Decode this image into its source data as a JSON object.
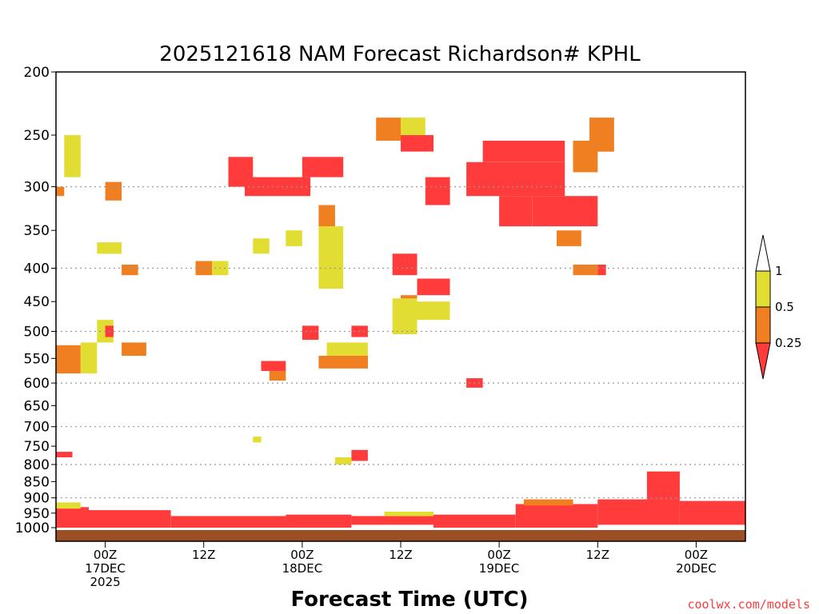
{
  "chart_data": {
    "type": "heatmap",
    "title": "2025121618 NAM Forecast Richardson# KPHL",
    "xlabel": "Forecast Time (UTC)",
    "ylabel": "",
    "y_axis": "pressure (hPa), log scale, inverted",
    "ylim": [
      1000,
      200
    ],
    "y_ticks": [
      200,
      250,
      300,
      350,
      400,
      450,
      500,
      550,
      600,
      650,
      700,
      750,
      800,
      850,
      900,
      950,
      1000
    ],
    "y_gridlines": [
      300,
      400,
      500,
      600,
      700,
      800,
      900
    ],
    "x_axis": "forecast hour from 2025-12-16 18Z",
    "xlim": [
      0,
      84
    ],
    "x_ticks": [
      {
        "hour": 6,
        "lines": [
          "00Z",
          "17DEC",
          "2025"
        ]
      },
      {
        "hour": 18,
        "lines": [
          "12Z"
        ]
      },
      {
        "hour": 30,
        "lines": [
          "00Z",
          "18DEC"
        ]
      },
      {
        "hour": 42,
        "lines": [
          "12Z"
        ]
      },
      {
        "hour": 54,
        "lines": [
          "00Z",
          "19DEC"
        ]
      },
      {
        "hour": 66,
        "lines": [
          "12Z"
        ]
      },
      {
        "hour": 78,
        "lines": [
          "00Z",
          "20DEC"
        ]
      }
    ],
    "colorbar": {
      "levels": [
        "1",
        "0.5",
        "0.25"
      ],
      "bins": [
        {
          "range": "0.5-1",
          "color": "#e2dd33"
        },
        {
          "range": "0.25-0.5",
          "color": "#f07f22"
        },
        {
          "range": "<0.25",
          "color": "#ff3b3b"
        }
      ],
      "above_max_color": "#ffffff"
    },
    "ground_color": "#9c4f25",
    "regions": [
      {
        "t0": 0,
        "t1": 4,
        "p0": 930,
        "p1": 1000,
        "cat": "red"
      },
      {
        "t0": 4,
        "t1": 14,
        "p0": 940,
        "p1": 1000,
        "cat": "red"
      },
      {
        "t0": 14,
        "t1": 28,
        "p0": 960,
        "p1": 1000,
        "cat": "red"
      },
      {
        "t0": 28,
        "t1": 36,
        "p0": 955,
        "p1": 1000,
        "cat": "red"
      },
      {
        "t0": 36,
        "t1": 46,
        "p0": 960,
        "p1": 990,
        "cat": "red"
      },
      {
        "t0": 46,
        "t1": 56,
        "p0": 955,
        "p1": 1000,
        "cat": "red"
      },
      {
        "t0": 56,
        "t1": 66,
        "p0": 920,
        "p1": 1000,
        "cat": "red"
      },
      {
        "t0": 66,
        "t1": 76,
        "p0": 905,
        "p1": 990,
        "cat": "red"
      },
      {
        "t0": 76,
        "t1": 84,
        "p0": 910,
        "p1": 990,
        "cat": "red"
      },
      {
        "t0": 72,
        "t1": 76,
        "p0": 820,
        "p1": 905,
        "cat": "red"
      },
      {
        "t0": 0,
        "t1": 3,
        "p0": 915,
        "p1": 935,
        "cat": "yellow"
      },
      {
        "t0": 40,
        "t1": 46,
        "p0": 945,
        "p1": 960,
        "cat": "yellow"
      },
      {
        "t0": 57,
        "t1": 63,
        "p0": 905,
        "p1": 925,
        "cat": "orange"
      },
      {
        "t0": 50,
        "t1": 62,
        "p0": 275,
        "p1": 310,
        "cat": "red"
      },
      {
        "t0": 52,
        "t1": 62,
        "p0": 255,
        "p1": 275,
        "cat": "red"
      },
      {
        "t0": 54,
        "t1": 58,
        "p0": 310,
        "p1": 345,
        "cat": "red"
      },
      {
        "t0": 58,
        "t1": 66,
        "p0": 310,
        "p1": 345,
        "cat": "red"
      },
      {
        "t0": 63,
        "t1": 66,
        "p0": 255,
        "p1": 285,
        "cat": "orange"
      },
      {
        "t0": 65,
        "t1": 68,
        "p0": 235,
        "p1": 265,
        "cat": "orange"
      },
      {
        "t0": 23,
        "t1": 31,
        "p0": 290,
        "p1": 310,
        "cat": "red"
      },
      {
        "t0": 21,
        "t1": 24,
        "p0": 270,
        "p1": 300,
        "cat": "red"
      },
      {
        "t0": 30,
        "t1": 35,
        "p0": 270,
        "p1": 290,
        "cat": "red"
      },
      {
        "t0": 42,
        "t1": 46,
        "p0": 250,
        "p1": 265,
        "cat": "red"
      },
      {
        "t0": 45,
        "t1": 48,
        "p0": 290,
        "p1": 320,
        "cat": "red"
      },
      {
        "t0": 39,
        "t1": 42,
        "p0": 235,
        "p1": 255,
        "cat": "orange"
      },
      {
        "t0": 42,
        "t1": 45,
        "p0": 235,
        "p1": 250,
        "cat": "yellow"
      },
      {
        "t0": 0,
        "t1": 1,
        "p0": 300,
        "p1": 310,
        "cat": "orange"
      },
      {
        "t0": 1,
        "t1": 3,
        "p0": 250,
        "p1": 290,
        "cat": "yellow"
      },
      {
        "t0": 6,
        "t1": 8,
        "p0": 295,
        "p1": 315,
        "cat": "orange"
      },
      {
        "t0": 5,
        "t1": 8,
        "p0": 365,
        "p1": 380,
        "cat": "yellow"
      },
      {
        "t0": 8,
        "t1": 10,
        "p0": 395,
        "p1": 410,
        "cat": "orange"
      },
      {
        "t0": 17,
        "t1": 19,
        "p0": 390,
        "p1": 410,
        "cat": "orange"
      },
      {
        "t0": 19,
        "t1": 21,
        "p0": 390,
        "p1": 410,
        "cat": "yellow"
      },
      {
        "t0": 24,
        "t1": 26,
        "p0": 360,
        "p1": 380,
        "cat": "yellow"
      },
      {
        "t0": 28,
        "t1": 30,
        "p0": 350,
        "p1": 370,
        "cat": "yellow"
      },
      {
        "t0": 32,
        "t1": 35,
        "p0": 345,
        "p1": 430,
        "cat": "yellow"
      },
      {
        "t0": 32,
        "t1": 34,
        "p0": 320,
        "p1": 345,
        "cat": "orange"
      },
      {
        "t0": 41,
        "t1": 44,
        "p0": 380,
        "p1": 410,
        "cat": "red"
      },
      {
        "t0": 44,
        "t1": 48,
        "p0": 415,
        "p1": 440,
        "cat": "red"
      },
      {
        "t0": 42,
        "t1": 44,
        "p0": 440,
        "p1": 490,
        "cat": "orange"
      },
      {
        "t0": 44,
        "t1": 48,
        "p0": 450,
        "p1": 480,
        "cat": "yellow"
      },
      {
        "t0": 41,
        "t1": 44,
        "p0": 445,
        "p1": 505,
        "cat": "yellow"
      },
      {
        "t0": 61,
        "t1": 64,
        "p0": 350,
        "p1": 370,
        "cat": "orange"
      },
      {
        "t0": 63,
        "t1": 66,
        "p0": 395,
        "p1": 410,
        "cat": "orange"
      },
      {
        "t0": 66,
        "t1": 67,
        "p0": 395,
        "p1": 410,
        "cat": "red"
      },
      {
        "t0": 0,
        "t1": 3,
        "p0": 525,
        "p1": 580,
        "cat": "orange"
      },
      {
        "t0": 3,
        "t1": 5,
        "p0": 520,
        "p1": 580,
        "cat": "yellow"
      },
      {
        "t0": 5,
        "t1": 7,
        "p0": 480,
        "p1": 520,
        "cat": "yellow"
      },
      {
        "t0": 6,
        "t1": 7,
        "p0": 490,
        "p1": 510,
        "cat": "red"
      },
      {
        "t0": 8,
        "t1": 11,
        "p0": 520,
        "p1": 545,
        "cat": "orange"
      },
      {
        "t0": 25,
        "t1": 28,
        "p0": 555,
        "p1": 575,
        "cat": "red"
      },
      {
        "t0": 26,
        "t1": 28,
        "p0": 575,
        "p1": 595,
        "cat": "orange"
      },
      {
        "t0": 30,
        "t1": 32,
        "p0": 490,
        "p1": 515,
        "cat": "red"
      },
      {
        "t0": 33,
        "t1": 38,
        "p0": 520,
        "p1": 545,
        "cat": "yellow"
      },
      {
        "t0": 32,
        "t1": 38,
        "p0": 545,
        "p1": 570,
        "cat": "orange"
      },
      {
        "t0": 36,
        "t1": 38,
        "p0": 490,
        "p1": 510,
        "cat": "red"
      },
      {
        "t0": 50,
        "t1": 52,
        "p0": 590,
        "p1": 610,
        "cat": "red"
      },
      {
        "t0": 0,
        "t1": 2,
        "p0": 765,
        "p1": 780,
        "cat": "red"
      },
      {
        "t0": 36,
        "t1": 38,
        "p0": 760,
        "p1": 790,
        "cat": "red"
      },
      {
        "t0": 34,
        "t1": 36,
        "p0": 780,
        "p1": 800,
        "cat": "yellow"
      },
      {
        "t0": 24,
        "t1": 25,
        "p0": 725,
        "p1": 740,
        "cat": "yellow"
      }
    ]
  }
}
